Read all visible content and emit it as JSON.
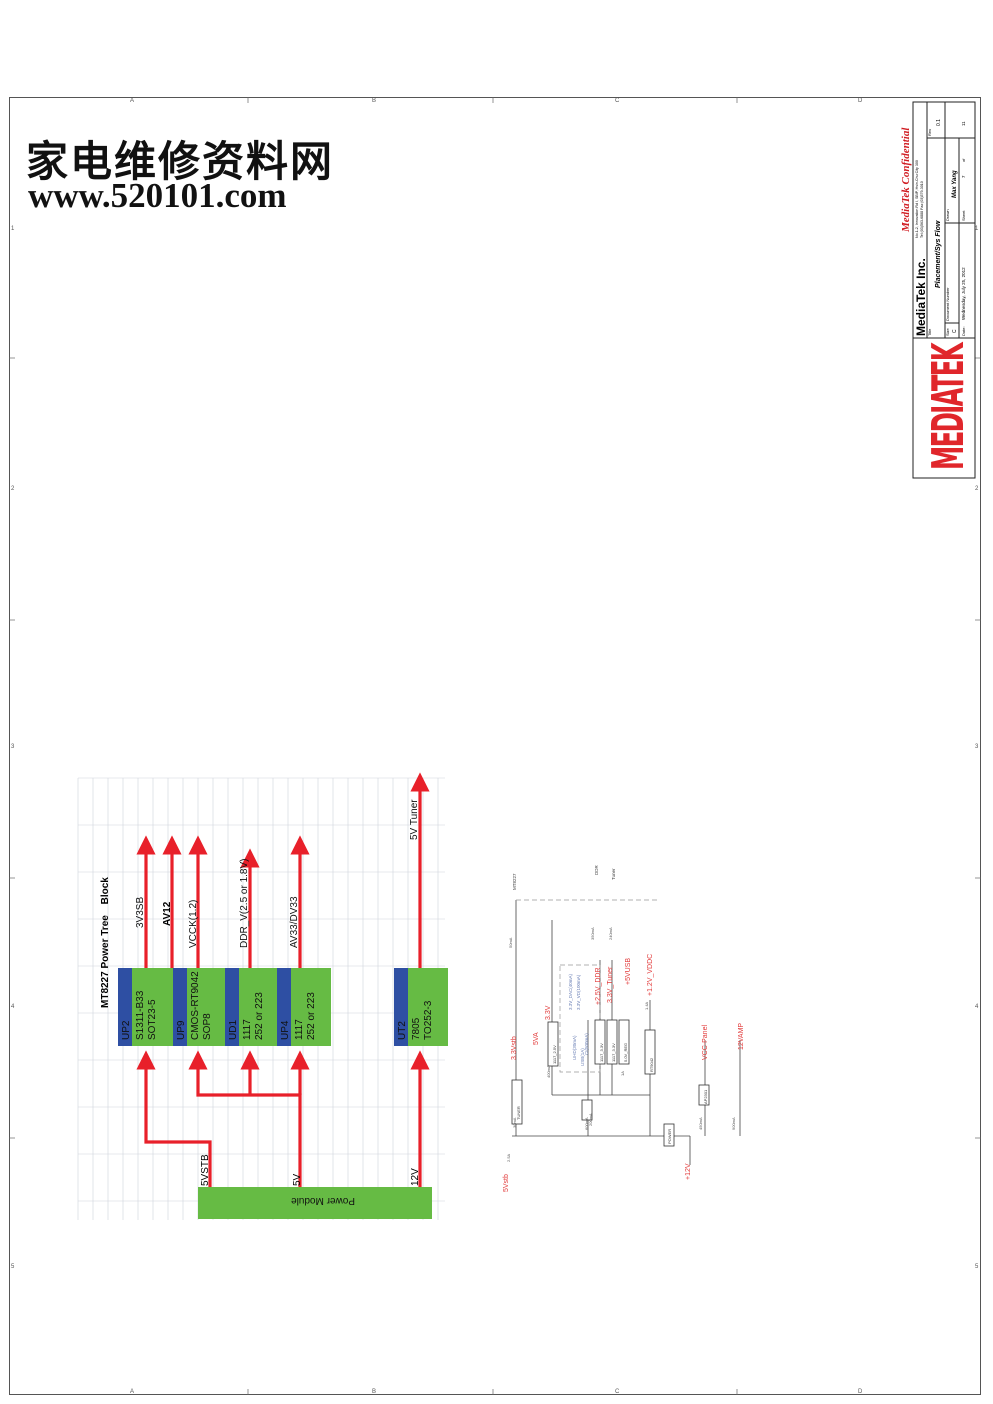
{
  "watermark": {
    "chinese": "家电维修资料网",
    "url": "www.520101.com"
  },
  "frame": {
    "top_zones": [
      "A",
      "B",
      "C",
      "D",
      "E"
    ],
    "side_zones": [
      "1",
      "2",
      "3",
      "4",
      "5"
    ]
  },
  "title_block": {
    "confidential": "MediaTek Confidential",
    "company": "MediaTek Inc.",
    "address": "No.1-2, Innovation Rd I, SBIP, Hsin-Chu City 300",
    "tel": "Tel:(03)563-6888  Fax:(03)579-3010",
    "logo_text": "MEDIATEK",
    "title_label": "Title",
    "title_value": "Placement/Sys Flow",
    "size_label": "Size",
    "size_value": "C",
    "document_number_label": "Document Number",
    "rev_label": "Rev",
    "rev_value": "0.1",
    "drawn_label": "Drawn",
    "drawn_value": "Max Yang",
    "date_label": "Date:",
    "date_value": "Wednesday, July 25, 2012",
    "sheet_label": "Sheet",
    "sheet_value": "7",
    "of_label": "of",
    "sheet_total": "11"
  },
  "power_tree": {
    "title": "MT8227 Power Tree",
    "title_suffix": "Block",
    "power_module": "Power  Module",
    "colors": {
      "regulator_id": "#2e4fa3",
      "regulator_body": "#66bb44",
      "arrow": "#e8202a",
      "module": "#66bb44"
    },
    "inputs": [
      "5VSTB",
      "5V",
      "12V"
    ],
    "regulators": [
      {
        "id": "UP2",
        "part": "S1311-B33",
        "package": "SOT23-5",
        "output": "3V3SB"
      },
      {
        "id": "UP9",
        "part": "CMOS-RT9042",
        "package": "SOP8",
        "output": "VCCK(1.2)",
        "group": "AV12"
      },
      {
        "id": "UD1",
        "part": "1117",
        "package": "252 or 223",
        "output": "DDR_V(2.5 or 1.8V)"
      },
      {
        "id": "UP4",
        "part": "1117",
        "package": "252 or 223",
        "output": "AV33/DV33"
      },
      {
        "id": "UT2",
        "part": "7805",
        "package": "TO252-3",
        "output": "5V Tuner"
      }
    ]
  },
  "sys_flow": {
    "rails": [
      "5Vstb",
      "3.3Vstb",
      "5VA",
      "3.3V",
      "+2.5V_DDR",
      "3.3V_Tuner",
      "+5VUSB",
      "+1.2V_VDDC",
      "+12V",
      "VCC-Panel",
      "12VAMP"
    ],
    "loads": [
      "MT8227",
      "DDR",
      "Tuner"
    ],
    "blocks": [
      "1117_2.5V",
      "1117_3.3V",
      "1117_3.3V",
      "5.0V_REG",
      "RT9042",
      "POWER",
      "AP2301",
      "TUNER"
    ],
    "currents": [
      "2.5A",
      "50mA",
      "30mA",
      "400mA",
      "200mA",
      "350mA",
      "240mA",
      "1A",
      "1.4A",
      "450mA",
      "600mA",
      "900mA"
    ],
    "annotations": [
      "3.3V_DAC(40mA)",
      "3.3V_VD(100mA)",
      "CI(500mA)",
      "UHD(30mA)",
      "USB(1A)"
    ]
  }
}
